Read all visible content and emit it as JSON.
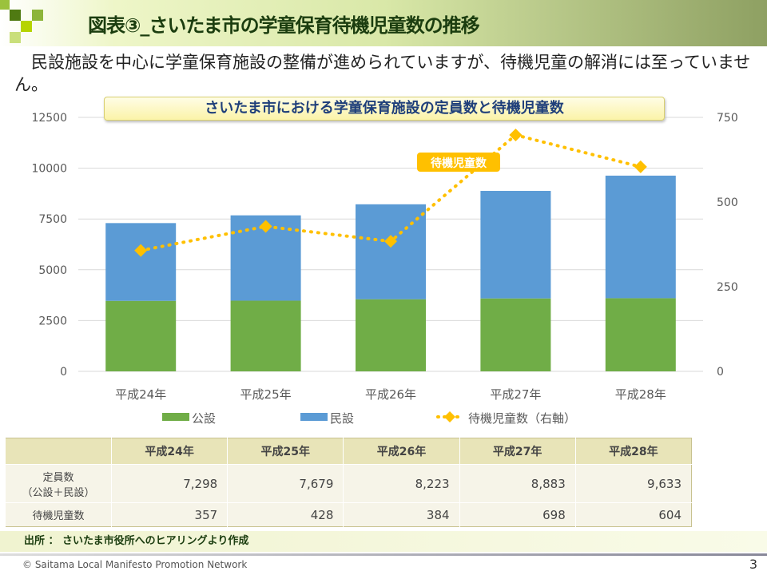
{
  "header": {
    "title": "図表③_さいたま市の学童保育待機児童数の推移"
  },
  "lead": "民設施設を中心に学童保育施設の整備が進められていますが、待機児童の解消には至っていません。",
  "chart_data": {
    "type": "bar+line",
    "title": "さいたま市における学童保育施設の定員数と待機児童数",
    "categories": [
      "平成24年",
      "平成25年",
      "平成26年",
      "平成27年",
      "平成28年"
    ],
    "y_left": {
      "range": [
        0,
        12500
      ],
      "ticks": [
        0,
        2500,
        5000,
        7500,
        10000,
        12500
      ]
    },
    "y_right": {
      "range": [
        0,
        750
      ],
      "ticks": [
        0,
        250,
        500,
        750
      ]
    },
    "grid": true,
    "legend_placement": "bottom",
    "series": [
      {
        "name": "公設",
        "type": "stacked-bar",
        "color": "#70ad47",
        "values": [
          3470,
          3480,
          3550,
          3590,
          3600
        ]
      },
      {
        "name": "民設",
        "type": "stacked-bar",
        "color": "#5b9bd5",
        "values": [
          3828,
          4199,
          4673,
          5293,
          6033
        ]
      },
      {
        "name": "待機児童数（右軸）",
        "type": "dotted-line",
        "axis": "right",
        "color": "#ffc000",
        "values": [
          357,
          428,
          384,
          698,
          604
        ]
      }
    ],
    "annotation": "待機児童数"
  },
  "table": {
    "headers": [
      "",
      "平成24年",
      "平成25年",
      "平成26年",
      "平成27年",
      "平成28年"
    ],
    "rows": [
      {
        "label1": "定員数",
        "label2": "（公設＋民設）",
        "values": [
          "7,298",
          "7,679",
          "8,223",
          "8,883",
          "9,633"
        ]
      },
      {
        "label1": "待機児童数",
        "values": [
          "357",
          "428",
          "384",
          "698",
          "604"
        ]
      }
    ]
  },
  "source": "出所 ： さいたま市役所へのヒアリングより作成",
  "footer": {
    "copyright": "© Saitama Local Manifesto Promotion Network",
    "page": "3"
  }
}
